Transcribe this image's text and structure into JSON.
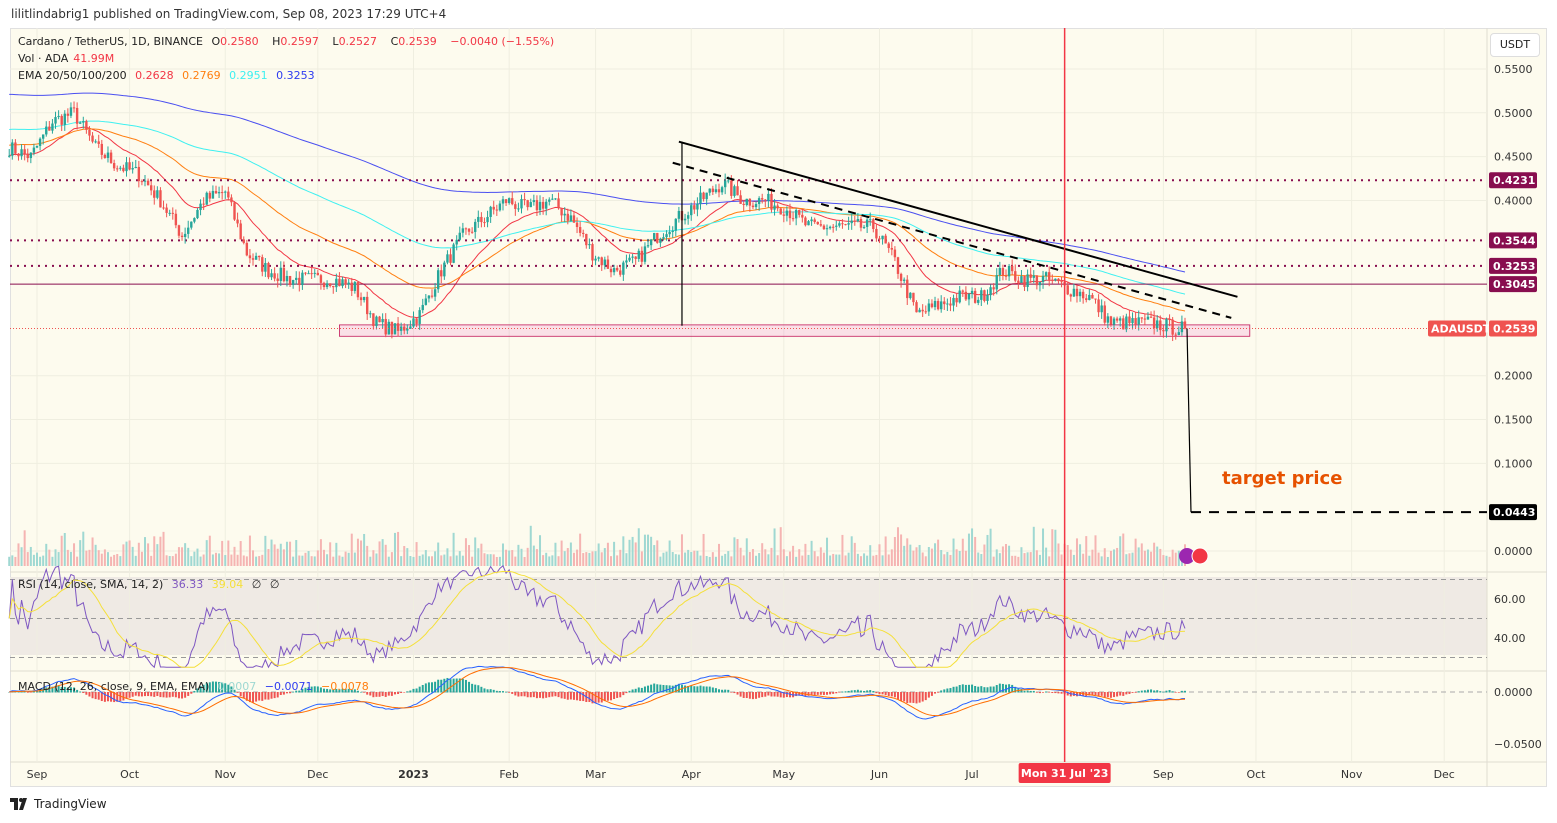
{
  "header": {
    "published": "lilitlindabrig1 published on TradingView.com, Sep 08, 2023 17:29 UTC+4"
  },
  "legend": {
    "symbol": "Cardano / TetherUS, 1D, BINANCE",
    "open_label": "O",
    "open": "0.2580",
    "high_label": "H",
    "high": "0.2597",
    "low_label": "L",
    "low": "0.2527",
    "close_label": "C",
    "close": "0.2539",
    "change": "−0.0040 (−1.55%)",
    "vol_label": "Vol · ADA",
    "vol": "41.99M",
    "ema_label": "EMA 20/50/100/200",
    "ema20": "0.2628",
    "ema50": "0.2769",
    "ema100": "0.2951",
    "ema200": "0.3253",
    "rsi_label": "RSI (14, close, SMA, 14, 2)",
    "rsi": "36.33",
    "rsi_sma": "39.04",
    "rsi_x1": "∅",
    "rsi_x2": "∅",
    "macd_label": "MACD (12, 26, close, 9, EMA, EMA)",
    "macd_hist": "0.0007",
    "macd": "−0.0071",
    "macd_signal": "−0.0078"
  },
  "currency_button": "USDT",
  "target_text": "target price",
  "branding": "TradingView",
  "colors": {
    "up": "#26a69a",
    "down": "#ef5350",
    "ema20": "#f23645",
    "ema50": "#ff7f11",
    "ema100": "#3ff0f0",
    "ema200": "#4a4ff0",
    "level": "#880e4f",
    "crosshair": "#f23645",
    "target": "#e65100",
    "rsi": "#7e57c2",
    "rsi_sma": "#f5e03a"
  },
  "chart_data": {
    "type": "candlestick",
    "symbol": "ADAUSDT",
    "interval": "1D",
    "weekly_close_dates": [
      "2022-08-23",
      "2022-08-30",
      "2022-09-06",
      "2022-09-13",
      "2022-09-20",
      "2022-09-27",
      "2022-10-04",
      "2022-10-11",
      "2022-10-18",
      "2022-10-25",
      "2022-11-01",
      "2022-11-08",
      "2022-11-15",
      "2022-11-22",
      "2022-11-29",
      "2022-12-06",
      "2022-12-13",
      "2022-12-20",
      "2022-12-27",
      "2023-01-03",
      "2023-01-10",
      "2023-01-17",
      "2023-01-24",
      "2023-01-31",
      "2023-02-07",
      "2023-02-14",
      "2023-02-21",
      "2023-02-28",
      "2023-03-07",
      "2023-03-14",
      "2023-03-21",
      "2023-03-28",
      "2023-04-04",
      "2023-04-11",
      "2023-04-18",
      "2023-04-25",
      "2023-05-02",
      "2023-05-09",
      "2023-05-16",
      "2023-05-23",
      "2023-05-30",
      "2023-06-06",
      "2023-06-13",
      "2023-06-20",
      "2023-06-27",
      "2023-07-04",
      "2023-07-11",
      "2023-07-18",
      "2023-07-25",
      "2023-08-01",
      "2023-08-08",
      "2023-08-15",
      "2023-08-22",
      "2023-08-29",
      "2023-09-05"
    ],
    "weekly_close": [
      0.46,
      0.45,
      0.49,
      0.5,
      0.46,
      0.44,
      0.43,
      0.4,
      0.36,
      0.4,
      0.41,
      0.34,
      0.32,
      0.31,
      0.31,
      0.31,
      0.3,
      0.26,
      0.25,
      0.27,
      0.32,
      0.36,
      0.38,
      0.4,
      0.39,
      0.4,
      0.38,
      0.34,
      0.32,
      0.33,
      0.36,
      0.38,
      0.4,
      0.42,
      0.4,
      0.4,
      0.39,
      0.37,
      0.37,
      0.37,
      0.37,
      0.33,
      0.27,
      0.28,
      0.29,
      0.29,
      0.32,
      0.31,
      0.31,
      0.3,
      0.29,
      0.26,
      0.26,
      0.26,
      0.254
    ],
    "last_close": 0.2539,
    "price_axis": {
      "ticks": [
        "0.5500",
        "0.5000",
        "0.4500",
        "0.4000",
        "0.2000",
        "0.1500",
        "0.1000",
        "0.0000"
      ],
      "values": [
        0.55,
        0.5,
        0.45,
        0.4,
        0.2,
        0.15,
        0.1,
        0
      ],
      "range": [
        0,
        0.57
      ]
    },
    "rsi_axis": {
      "ticks": [
        "60.00",
        "40.00"
      ],
      "values": [
        60,
        40
      ],
      "bands": [
        30,
        50,
        70
      ]
    },
    "macd_axis": {
      "ticks": [
        "0.0000",
        "−0.0500"
      ],
      "values": [
        0,
        -0.05
      ]
    },
    "time_axis": {
      "ticks": [
        "Sep",
        "Oct",
        "Nov",
        "Dec",
        "2023",
        "Feb",
        "Mar",
        "Apr",
        "May",
        "Jun",
        "Jul",
        "Sep",
        "Oct",
        "Nov",
        "Dec"
      ],
      "dates": [
        "2022-09-01",
        "2022-10-01",
        "2022-11-01",
        "2022-12-01",
        "2023-01-01",
        "2023-02-01",
        "2023-03-01",
        "2023-04-01",
        "2023-05-01",
        "2023-06-01",
        "2023-07-01",
        "2023-09-01",
        "2023-10-01",
        "2023-11-01",
        "2023-12-01"
      ]
    },
    "crosshair": {
      "date": "2023-07-31",
      "label": "Mon 31 Jul '23"
    },
    "levels": [
      {
        "value": 0.4231,
        "label": "0.4231",
        "style": "dotted"
      },
      {
        "value": 0.3544,
        "label": "0.3544",
        "style": "dotted"
      },
      {
        "value": 0.3253,
        "label": "0.3253",
        "style": "dotted"
      },
      {
        "value": 0.3045,
        "label": "0.3045",
        "style": "solid"
      }
    ],
    "price_label": {
      "name": "ADAUSDT",
      "value": "0.2539"
    },
    "target": {
      "value": 0.0443,
      "label": "0.0443",
      "from_date": "2023-09-08"
    },
    "support_zone": {
      "from": "2022-12-08",
      "to": "2023-09-29",
      "low": 0.245,
      "high": 0.258
    },
    "trendlines": [
      {
        "style": "solid",
        "p1": [
          "2023-03-28",
          0.467
        ],
        "p2": [
          "2023-09-25",
          0.29
        ]
      },
      {
        "style": "dashed",
        "p1": [
          "2023-03-26",
          0.443
        ],
        "p2": [
          "2023-09-23",
          0.266
        ]
      }
    ],
    "vertical_marker": {
      "date": "2023-03-29",
      "from": 0.467,
      "to": 0.257
    }
  }
}
